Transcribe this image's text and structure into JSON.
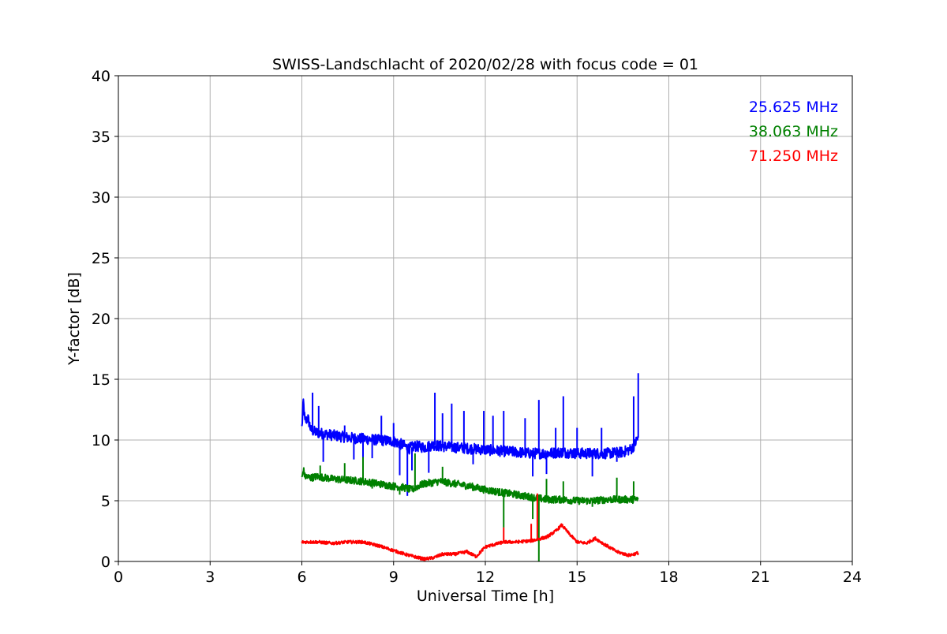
{
  "chart_data": {
    "type": "line",
    "title": "SWISS-Landschlacht of 2020/02/28 with focus code = 01",
    "xlabel": "Universal Time [h]",
    "ylabel": "Y-factor [dB]",
    "xlim": [
      0,
      24
    ],
    "ylim": [
      0,
      40
    ],
    "xticks": [
      0,
      3,
      6,
      9,
      12,
      15,
      18,
      21,
      24
    ],
    "yticks": [
      0,
      5,
      10,
      15,
      20,
      25,
      30,
      35,
      40
    ],
    "xtick_labels": [
      "0",
      "3",
      "6",
      "9",
      "12",
      "15",
      "18",
      "21",
      "24"
    ],
    "ytick_labels": [
      "0",
      "5",
      "10",
      "15",
      "20",
      "25",
      "30",
      "35",
      "40"
    ],
    "grid": true,
    "legend_position": "top-right",
    "series": [
      {
        "name": "25.625 MHz",
        "color": "#0000ff",
        "x": [
          6.0,
          6.05,
          6.1,
          6.2,
          6.3,
          6.5,
          7.0,
          7.5,
          8.0,
          8.5,
          9.0,
          9.3,
          9.5,
          9.7,
          10.0,
          10.3,
          10.5,
          11.0,
          11.5,
          12.0,
          12.5,
          13.0,
          13.5,
          14.0,
          14.5,
          15.0,
          15.5,
          16.0,
          16.5,
          16.8,
          17.0
        ],
        "y": [
          11.0,
          13.2,
          11.5,
          11.8,
          10.8,
          10.6,
          10.4,
          10.2,
          10.1,
          10.0,
          9.9,
          9.6,
          9.3,
          9.5,
          9.4,
          9.6,
          9.5,
          9.4,
          9.3,
          9.2,
          9.1,
          9.0,
          8.9,
          8.9,
          9.0,
          8.9,
          8.9,
          8.9,
          9.0,
          9.3,
          10.2
        ],
        "spikes": [
          [
            6.35,
            13.9
          ],
          [
            6.55,
            12.8
          ],
          [
            6.7,
            8.2
          ],
          [
            7.4,
            11.2
          ],
          [
            7.7,
            8.4
          ],
          [
            8.0,
            8.0
          ],
          [
            8.3,
            8.5
          ],
          [
            8.6,
            12.0
          ],
          [
            9.0,
            11.4
          ],
          [
            9.2,
            7.1
          ],
          [
            9.45,
            5.4
          ],
          [
            9.6,
            7.5
          ],
          [
            10.15,
            7.3
          ],
          [
            10.35,
            13.9
          ],
          [
            10.6,
            12.2
          ],
          [
            10.9,
            13.0
          ],
          [
            11.3,
            12.4
          ],
          [
            11.6,
            8.0
          ],
          [
            11.95,
            12.4
          ],
          [
            12.25,
            12.0
          ],
          [
            12.6,
            12.4
          ],
          [
            13.3,
            11.8
          ],
          [
            13.55,
            7.0
          ],
          [
            13.75,
            13.3
          ],
          [
            14.0,
            7.2
          ],
          [
            14.3,
            11.0
          ],
          [
            14.55,
            13.6
          ],
          [
            15.0,
            11.0
          ],
          [
            15.5,
            7.0
          ],
          [
            15.8,
            11.0
          ],
          [
            16.3,
            8.2
          ],
          [
            16.85,
            13.6
          ],
          [
            17.0,
            15.5
          ]
        ]
      },
      {
        "name": "38.063 MHz",
        "color": "#008000",
        "x": [
          6.0,
          6.05,
          6.1,
          6.3,
          6.5,
          7.0,
          7.5,
          8.0,
          8.5,
          9.0,
          9.3,
          9.6,
          9.8,
          10.0,
          10.3,
          10.5,
          11.0,
          11.5,
          12.0,
          12.5,
          13.0,
          13.5,
          14.0,
          14.5,
          15.0,
          15.5,
          16.0,
          16.5,
          17.0
        ],
        "y": [
          6.8,
          7.6,
          7.0,
          6.9,
          7.0,
          6.8,
          6.7,
          6.6,
          6.4,
          6.2,
          6.1,
          5.9,
          6.2,
          6.4,
          6.5,
          6.6,
          6.4,
          6.2,
          5.9,
          5.7,
          5.5,
          5.3,
          5.1,
          5.1,
          5.0,
          5.0,
          5.1,
          5.1,
          5.1
        ],
        "spikes": [
          [
            6.6,
            7.9
          ],
          [
            7.4,
            8.1
          ],
          [
            8.0,
            8.6
          ],
          [
            8.3,
            6.0
          ],
          [
            9.2,
            5.5
          ],
          [
            9.7,
            8.9
          ],
          [
            10.6,
            7.8
          ],
          [
            12.6,
            2.8
          ],
          [
            13.55,
            3.5
          ],
          [
            13.75,
            0.0
          ],
          [
            14.0,
            6.8
          ],
          [
            14.55,
            6.6
          ],
          [
            15.5,
            4.5
          ],
          [
            16.3,
            6.9
          ],
          [
            16.85,
            6.6
          ]
        ]
      },
      {
        "name": "71.250 MHz",
        "color": "#ff0000",
        "x": [
          6.0,
          6.5,
          7.0,
          7.5,
          8.0,
          8.5,
          9.0,
          9.5,
          10.0,
          10.3,
          10.6,
          11.0,
          11.4,
          11.7,
          12.0,
          12.3,
          12.6,
          13.0,
          13.5,
          14.0,
          14.3,
          14.5,
          14.7,
          15.0,
          15.3,
          15.6,
          15.9,
          16.3,
          16.7,
          17.0
        ],
        "y": [
          1.6,
          1.6,
          1.5,
          1.6,
          1.6,
          1.3,
          0.9,
          0.5,
          0.2,
          0.3,
          0.6,
          0.6,
          0.8,
          0.4,
          1.2,
          1.4,
          1.6,
          1.6,
          1.7,
          2.0,
          2.5,
          3.0,
          2.4,
          1.6,
          1.5,
          1.9,
          1.4,
          0.8,
          0.5,
          0.7
        ],
        "spikes": [
          [
            12.6,
            2.8
          ],
          [
            13.5,
            3.1
          ],
          [
            13.7,
            5.6
          ]
        ]
      }
    ]
  }
}
